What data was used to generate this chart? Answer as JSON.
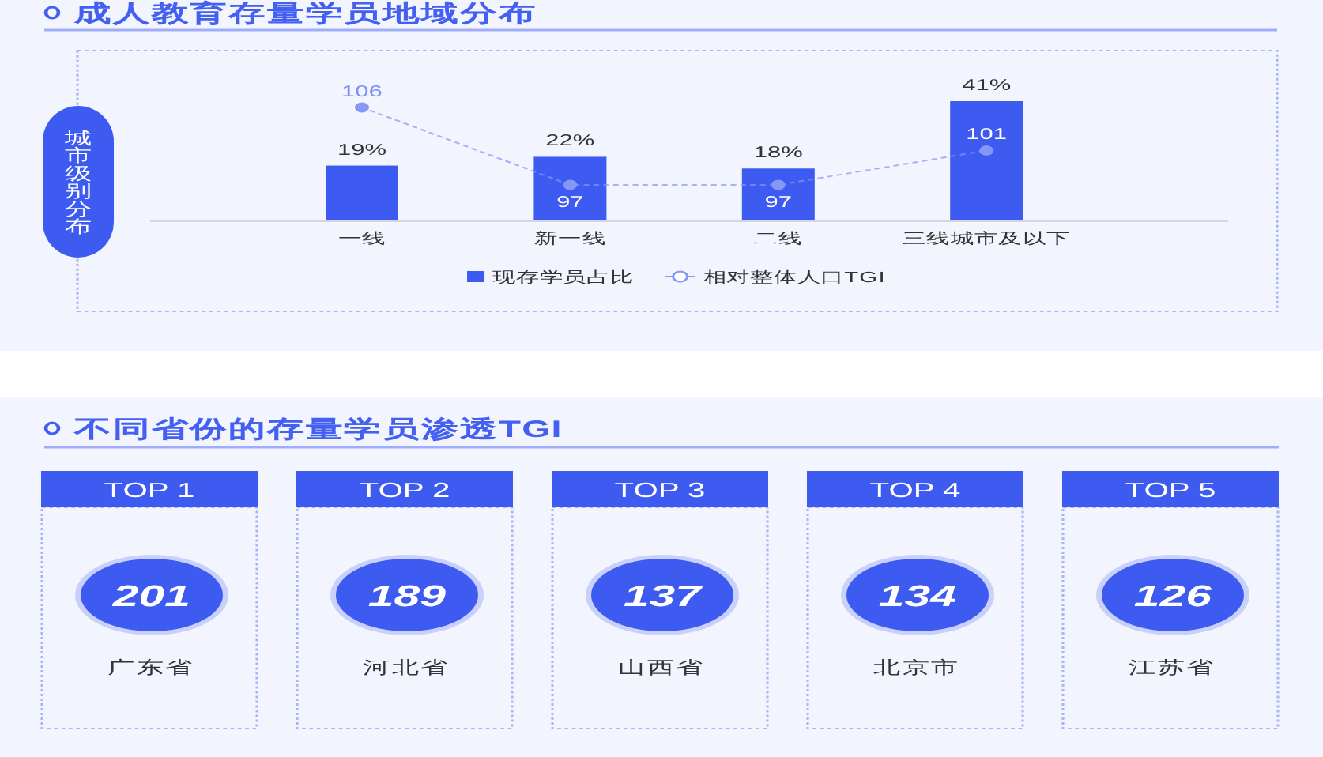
{
  "chart_data": [
    {
      "type": "bar",
      "title": "成人教育存量学员地域分布",
      "ylabel": "城市级别分布",
      "categories": [
        "一线",
        "新一线",
        "二线",
        "三线城市及以下"
      ],
      "series": [
        {
          "name": "现存学员占比",
          "color": "#3d5af1",
          "values": [
            19,
            22,
            18,
            41
          ],
          "value_labels": [
            "19%",
            "22%",
            "18%",
            "41%"
          ]
        },
        {
          "name": "相对整体人口TGI",
          "type": "line",
          "axis": "y2",
          "color": "#8797f6",
          "values": [
            106,
            97,
            97,
            101
          ],
          "value_labels": [
            "106",
            "97",
            "97",
            "101"
          ],
          "marker": "circle",
          "line_style": "dotted"
        }
      ],
      "tick_labels": "x",
      "legend": "bottom"
    },
    {
      "type": "other",
      "title": "不同省份的存量学员渗透TGI",
      "categories": [
        "广东省",
        "河北省",
        "山西省",
        "北京市",
        "江苏省"
      ],
      "values": [
        201,
        189,
        137,
        134,
        126
      ],
      "color": "#3d5af1",
      "data_labels": true,
      "annotations": [
        "TOP 1",
        "TOP 2",
        "TOP 3",
        "TOP 4",
        "TOP 5"
      ]
    }
  ]
}
